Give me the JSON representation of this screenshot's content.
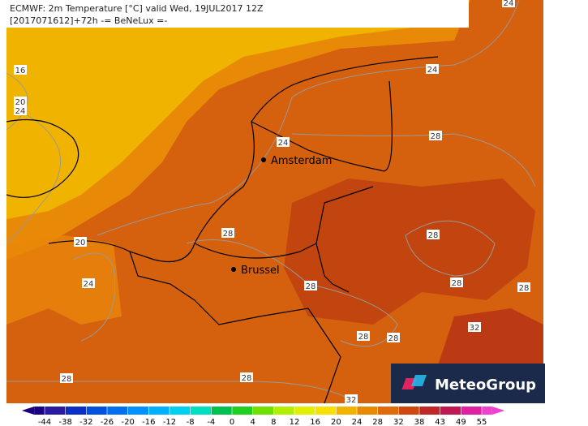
{
  "header": {
    "line1": "ECMWF: 2m Temperature [°C] valid Wed, 19JUL2017 12Z",
    "line2": "[2017071612]+72h -= BeNeLux =-"
  },
  "cities": [
    {
      "name": "Amsterdam"
    },
    {
      "name": "Brussel"
    }
  ],
  "contour_labels": [
    24,
    16,
    20,
    24,
    24,
    24,
    28,
    20,
    28,
    28,
    24,
    28,
    28,
    28,
    32,
    28,
    28,
    28,
    28,
    32
  ],
  "colorbar": {
    "ticks": [
      -44,
      -38,
      -32,
      -26,
      -20,
      -16,
      -12,
      -8,
      -4,
      0,
      4,
      8,
      12,
      16,
      20,
      24,
      28,
      32,
      38,
      43,
      49,
      55
    ],
    "colors": [
      "#1a0080",
      "#2a1aa0",
      "#0b2fc4",
      "#0050e0",
      "#0070f0",
      "#0090ff",
      "#00b0ff",
      "#00d0f0",
      "#00e0c0",
      "#00c050",
      "#20d020",
      "#70e000",
      "#b0f000",
      "#e0f000",
      "#f8e000",
      "#f0b400",
      "#e88a00",
      "#e06a0a",
      "#d04810",
      "#c02828",
      "#c01850",
      "#e020a0",
      "#f040d0"
    ]
  },
  "logo": {
    "text": "MeteoGroup"
  }
}
